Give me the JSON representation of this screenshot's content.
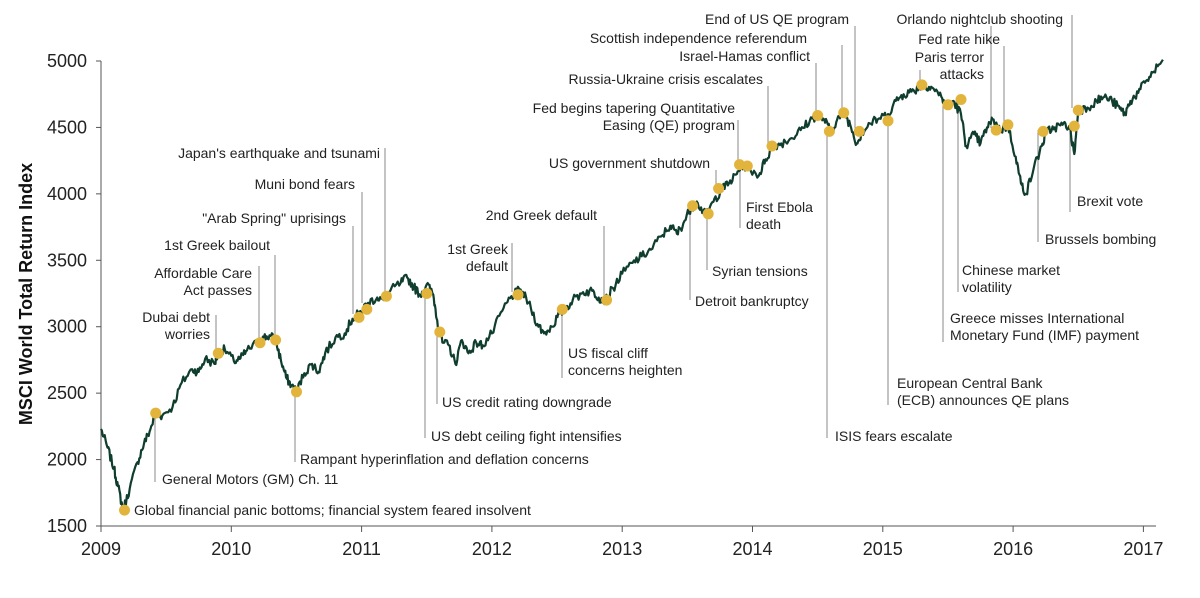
{
  "chart_data": {
    "type": "line",
    "title": "",
    "xlabel": "",
    "ylabel": "MSCI World Total Return Index",
    "xlim": [
      2009.0,
      2017.15
    ],
    "ylim": [
      1500,
      5000
    ],
    "yticks": [
      1500,
      2000,
      2500,
      3000,
      3500,
      4000,
      4500,
      5000
    ],
    "xticks": [
      "2009",
      "2010",
      "2011",
      "2012",
      "2013",
      "2014",
      "2015",
      "2016",
      "2017"
    ],
    "grid": false,
    "legend": "none",
    "colors": {
      "line": "#0f3d2e",
      "marker": "#e3b43c",
      "leader": "#8a8a8a"
    },
    "series": [
      {
        "points": [
          [
            2009.0,
            2230
          ],
          [
            2009.05,
            2090
          ],
          [
            2009.1,
            1930
          ],
          [
            2009.13,
            1800
          ],
          [
            2009.17,
            1620
          ],
          [
            2009.22,
            1780
          ],
          [
            2009.28,
            1980
          ],
          [
            2009.33,
            2120
          ],
          [
            2009.38,
            2230
          ],
          [
            2009.42,
            2350
          ],
          [
            2009.47,
            2330
          ],
          [
            2009.55,
            2400
          ],
          [
            2009.62,
            2580
          ],
          [
            2009.7,
            2680
          ],
          [
            2009.75,
            2660
          ],
          [
            2009.8,
            2760
          ],
          [
            2009.87,
            2720
          ],
          [
            2009.9,
            2800
          ],
          [
            2009.95,
            2830
          ],
          [
            2010.02,
            2740
          ],
          [
            2010.07,
            2760
          ],
          [
            2010.12,
            2820
          ],
          [
            2010.2,
            2880
          ],
          [
            2010.25,
            2920
          ],
          [
            2010.3,
            2930
          ],
          [
            2010.34,
            2900
          ],
          [
            2010.38,
            2750
          ],
          [
            2010.42,
            2620
          ],
          [
            2010.46,
            2560
          ],
          [
            2010.5,
            2510
          ],
          [
            2010.56,
            2650
          ],
          [
            2010.62,
            2720
          ],
          [
            2010.67,
            2660
          ],
          [
            2010.72,
            2800
          ],
          [
            2010.8,
            2920
          ],
          [
            2010.87,
            2950
          ],
          [
            2010.93,
            3060
          ],
          [
            2010.98,
            3100
          ],
          [
            2011.05,
            3180
          ],
          [
            2011.12,
            3220
          ],
          [
            2011.17,
            3200
          ],
          [
            2011.22,
            3270
          ],
          [
            2011.3,
            3330
          ],
          [
            2011.35,
            3370
          ],
          [
            2011.4,
            3300
          ],
          [
            2011.45,
            3240
          ],
          [
            2011.5,
            3320
          ],
          [
            2011.55,
            3240
          ],
          [
            2011.58,
            3050
          ],
          [
            2011.62,
            2880
          ],
          [
            2011.67,
            2860
          ],
          [
            2011.72,
            2720
          ],
          [
            2011.77,
            2900
          ],
          [
            2011.82,
            2800
          ],
          [
            2011.88,
            2880
          ],
          [
            2011.93,
            2860
          ],
          [
            2012.0,
            2950
          ],
          [
            2012.08,
            3120
          ],
          [
            2012.15,
            3230
          ],
          [
            2012.22,
            3280
          ],
          [
            2012.28,
            3180
          ],
          [
            2012.35,
            3020
          ],
          [
            2012.4,
            2950
          ],
          [
            2012.46,
            3000
          ],
          [
            2012.52,
            3100
          ],
          [
            2012.56,
            3130
          ],
          [
            2012.62,
            3200
          ],
          [
            2012.7,
            3260
          ],
          [
            2012.77,
            3270
          ],
          [
            2012.82,
            3220
          ],
          [
            2012.87,
            3200
          ],
          [
            2012.93,
            3290
          ],
          [
            2013.0,
            3400
          ],
          [
            2013.08,
            3480
          ],
          [
            2013.15,
            3530
          ],
          [
            2013.22,
            3580
          ],
          [
            2013.3,
            3680
          ],
          [
            2013.37,
            3760
          ],
          [
            2013.42,
            3700
          ],
          [
            2013.47,
            3780
          ],
          [
            2013.53,
            3900
          ],
          [
            2013.58,
            3930
          ],
          [
            2013.64,
            3840
          ],
          [
            2013.7,
            3940
          ],
          [
            2013.76,
            4030
          ],
          [
            2013.82,
            4080
          ],
          [
            2013.88,
            4150
          ],
          [
            2013.92,
            4220
          ],
          [
            2013.96,
            4200
          ],
          [
            2014.05,
            4140
          ],
          [
            2014.1,
            4260
          ],
          [
            2014.16,
            4360
          ],
          [
            2014.22,
            4380
          ],
          [
            2014.3,
            4420
          ],
          [
            2014.37,
            4480
          ],
          [
            2014.44,
            4550
          ],
          [
            2014.5,
            4600
          ],
          [
            2014.55,
            4560
          ],
          [
            2014.6,
            4470
          ],
          [
            2014.65,
            4560
          ],
          [
            2014.7,
            4610
          ],
          [
            2014.75,
            4520
          ],
          [
            2014.8,
            4380
          ],
          [
            2014.84,
            4460
          ],
          [
            2014.9,
            4530
          ],
          [
            2014.96,
            4560
          ],
          [
            2015.04,
            4600
          ],
          [
            2015.1,
            4700
          ],
          [
            2015.16,
            4750
          ],
          [
            2015.22,
            4770
          ],
          [
            2015.28,
            4800
          ],
          [
            2015.32,
            4820
          ],
          [
            2015.38,
            4800
          ],
          [
            2015.45,
            4730
          ],
          [
            2015.49,
            4660
          ],
          [
            2015.54,
            4700
          ],
          [
            2015.6,
            4600
          ],
          [
            2015.64,
            4360
          ],
          [
            2015.7,
            4450
          ],
          [
            2015.75,
            4380
          ],
          [
            2015.8,
            4500
          ],
          [
            2015.85,
            4560
          ],
          [
            2015.9,
            4480
          ],
          [
            2015.96,
            4510
          ],
          [
            2016.02,
            4280
          ],
          [
            2016.06,
            4080
          ],
          [
            2016.1,
            4000
          ],
          [
            2016.16,
            4200
          ],
          [
            2016.22,
            4360
          ],
          [
            2016.26,
            4470
          ],
          [
            2016.32,
            4500
          ],
          [
            2016.38,
            4520
          ],
          [
            2016.43,
            4510
          ],
          [
            2016.47,
            4300
          ],
          [
            2016.5,
            4630
          ],
          [
            2016.57,
            4650
          ],
          [
            2016.64,
            4700
          ],
          [
            2016.7,
            4730
          ],
          [
            2016.76,
            4700
          ],
          [
            2016.82,
            4640
          ],
          [
            2016.86,
            4600
          ],
          [
            2016.9,
            4700
          ],
          [
            2016.96,
            4760
          ],
          [
            2017.02,
            4850
          ],
          [
            2017.08,
            4920
          ],
          [
            2017.15,
            5010
          ]
        ]
      }
    ],
    "events": [
      {
        "label": [
          "Global financial panic bottoms; financial system feared insolvent"
        ],
        "x": 2009.18,
        "y": 1620
      },
      {
        "label": [
          "General Motors (GM) Ch. 11"
        ],
        "x": 2009.42,
        "y": 2350
      },
      {
        "label": [
          "Dubai debt",
          "worries"
        ],
        "x": 2009.9,
        "y": 2800
      },
      {
        "label": [
          "Affordable Care",
          "Act passes"
        ],
        "x": 2010.22,
        "y": 2880
      },
      {
        "label": [
          "1st Greek bailout"
        ],
        "x": 2010.34,
        "y": 2900
      },
      {
        "label": [
          "Rampant hyperinflation and deflation concerns"
        ],
        "x": 2010.5,
        "y": 2510
      },
      {
        "label": [
          "\"Arab Spring\" uprisings"
        ],
        "x": 2010.98,
        "y": 3070
      },
      {
        "label": [
          "Muni bond fears"
        ],
        "x": 2011.04,
        "y": 3130
      },
      {
        "label": [
          "Japan's earthquake and tsunami"
        ],
        "x": 2011.19,
        "y": 3230
      },
      {
        "label": [
          "US debt ceiling fight intensifies"
        ],
        "x": 2011.5,
        "y": 3250
      },
      {
        "label": [
          "US credit rating downgrade"
        ],
        "x": 2011.6,
        "y": 2960
      },
      {
        "label": [
          "1st Greek",
          "default"
        ],
        "x": 2012.2,
        "y": 3240
      },
      {
        "label": [
          "US fiscal cliff",
          "concerns heighten"
        ],
        "x": 2012.54,
        "y": 3130
      },
      {
        "label": [
          "2nd Greek default"
        ],
        "x": 2012.88,
        "y": 3200
      },
      {
        "label": [
          "Detroit bankruptcy"
        ],
        "x": 2013.54,
        "y": 3910
      },
      {
        "label": [
          "Syrian tensions"
        ],
        "x": 2013.66,
        "y": 3850
      },
      {
        "label": [
          "US government shutdown"
        ],
        "x": 2013.74,
        "y": 4040
      },
      {
        "label": [
          "Fed begins tapering Quantitative",
          "Easing (QE) program"
        ],
        "x": 2013.9,
        "y": 4220
      },
      {
        "label": [
          "First Ebola",
          "death"
        ],
        "x": 2013.96,
        "y": 4210
      },
      {
        "label": [
          "Russia-Ukraine crisis escalates"
        ],
        "x": 2014.15,
        "y": 4360
      },
      {
        "label": [
          "Israel-Hamas conflict"
        ],
        "x": 2014.5,
        "y": 4590
      },
      {
        "label": [
          "ISIS fears escalate"
        ],
        "x": 2014.59,
        "y": 4470
      },
      {
        "label": [
          "Scottish independence referendum"
        ],
        "x": 2014.7,
        "y": 4610
      },
      {
        "label": [
          "End of US QE program"
        ],
        "x": 2014.82,
        "y": 4470
      },
      {
        "label": [
          "European Central Bank",
          "(ECB) announces QE plans"
        ],
        "x": 2015.04,
        "y": 4550
      },
      {
        "label": [
          "Paris terror",
          "attacks"
        ],
        "x": 2015.3,
        "y": 4820
      },
      {
        "label": [
          "Greece misses International",
          "Monetary Fund (IMF) payment"
        ],
        "x": 2015.5,
        "y": 4670
      },
      {
        "label": [
          "Chinese market",
          "volatility"
        ],
        "x": 2015.6,
        "y": 4710
      },
      {
        "label": [
          "Orlando nightclub shooting"
        ],
        "x": 2015.87,
        "y": 4480
      },
      {
        "label": [
          "Fed rate hike"
        ],
        "x": 2015.96,
        "y": 4520
      },
      {
        "label": [
          "Brussels bombing"
        ],
        "x": 2016.23,
        "y": 4470
      },
      {
        "label": [
          "Brexit vote"
        ],
        "x": 2016.47,
        "y": 4510
      },
      {
        "label": [],
        "x": 2016.5,
        "y": 4630
      }
    ]
  }
}
